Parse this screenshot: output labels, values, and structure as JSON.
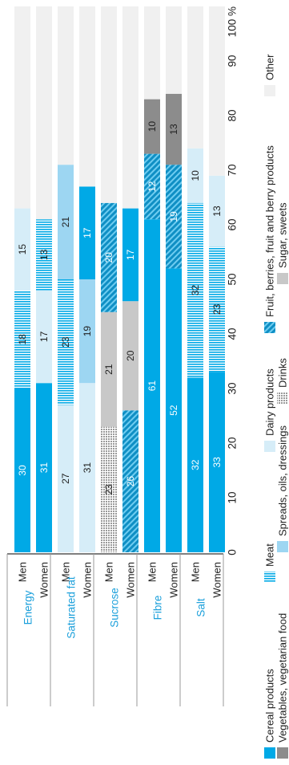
{
  "chart_data": {
    "type": "bar",
    "stacked": true,
    "orientation": "horizontal",
    "x_axis_unit": "%",
    "x_ticks": [
      "0",
      "10",
      "20",
      "30",
      "40",
      "50",
      "60",
      "70",
      "80",
      "90",
      "100 %"
    ],
    "xlim": [
      0,
      100
    ],
    "groups": [
      {
        "label": "Energy",
        "bars": [
          {
            "label": "Men",
            "segments": [
              {
                "series": "Cereal products",
                "value": 30,
                "label": "30"
              },
              {
                "series": "Meat",
                "value": 18,
                "label": "18"
              },
              {
                "series": "Dairy products",
                "value": 15,
                "label": "15"
              },
              {
                "series": "Other",
                "value": 37,
                "label": ""
              }
            ]
          },
          {
            "label": "Women",
            "segments": [
              {
                "series": "Cereal products",
                "value": 31,
                "label": "31"
              },
              {
                "series": "Dairy products",
                "value": 17,
                "label": "17"
              },
              {
                "series": "Meat",
                "value": 13,
                "label": "13"
              },
              {
                "series": "Other",
                "value": 39,
                "label": ""
              }
            ]
          }
        ]
      },
      {
        "label": "Saturated fat",
        "bars": [
          {
            "label": "Men",
            "segments": [
              {
                "series": "Dairy products",
                "value": 27,
                "label": "27"
              },
              {
                "series": "Meat",
                "value": 23,
                "label": "23"
              },
              {
                "series": "Spreads, oils, dressings",
                "value": 21,
                "label": "21"
              },
              {
                "series": "Other",
                "value": 29,
                "label": ""
              }
            ]
          },
          {
            "label": "Women",
            "segments": [
              {
                "series": "Dairy products",
                "value": 31,
                "label": "31"
              },
              {
                "series": "Spreads, oils, dressings",
                "value": 19,
                "label": "19"
              },
              {
                "series": "Cereal products",
                "value": 17,
                "label": "17"
              },
              {
                "series": "Other",
                "value": 33,
                "label": ""
              }
            ]
          }
        ]
      },
      {
        "label": "Sucrose",
        "bars": [
          {
            "label": "Men",
            "segments": [
              {
                "series": "Drinks",
                "value": 23,
                "label": "23"
              },
              {
                "series": "Sugar, sweets",
                "value": 21,
                "label": "21"
              },
              {
                "series": "Fruit, berries, fruit and berry products",
                "value": 20,
                "label": "20"
              },
              {
                "series": "Other",
                "value": 36,
                "label": ""
              }
            ]
          },
          {
            "label": "Women",
            "segments": [
              {
                "series": "Fruit, berries, fruit and berry products",
                "value": 26,
                "label": "26"
              },
              {
                "series": "Sugar, sweets",
                "value": 20,
                "label": "20"
              },
              {
                "series": "Cereal products",
                "value": 17,
                "label": "17"
              },
              {
                "series": "Other",
                "value": 37,
                "label": ""
              }
            ]
          }
        ]
      },
      {
        "label": "Fibre",
        "bars": [
          {
            "label": "Men",
            "segments": [
              {
                "series": "Cereal products",
                "value": 61,
                "label": "61"
              },
              {
                "series": "Fruit, berries, fruit and berry products",
                "value": 12,
                "label": "12"
              },
              {
                "series": "Vegetables, vegetarian food",
                "value": 10,
                "label": "10"
              },
              {
                "series": "Other",
                "value": 17,
                "label": ""
              }
            ]
          },
          {
            "label": "Women",
            "segments": [
              {
                "series": "Cereal products",
                "value": 52,
                "label": "52"
              },
              {
                "series": "Fruit, berries, fruit and berry products",
                "value": 19,
                "label": "19"
              },
              {
                "series": "Vegetables, vegetarian food",
                "value": 13,
                "label": "13"
              },
              {
                "series": "Other",
                "value": 16,
                "label": ""
              }
            ]
          }
        ]
      },
      {
        "label": "Salt",
        "bars": [
          {
            "label": "Men",
            "segments": [
              {
                "series": "Cereal products",
                "value": 32,
                "label": "32"
              },
              {
                "series": "Meat",
                "value": 32,
                "label": "32"
              },
              {
                "series": "Dairy products",
                "value": 10,
                "label": "10"
              },
              {
                "series": "Other",
                "value": 26,
                "label": ""
              }
            ]
          },
          {
            "label": "Women",
            "segments": [
              {
                "series": "Cereal products",
                "value": 33,
                "label": "33"
              },
              {
                "series": "Meat",
                "value": 23,
                "label": "23"
              },
              {
                "series": "Dairy products",
                "value": 13,
                "label": "13"
              },
              {
                "series": "Other",
                "value": 31,
                "label": ""
              }
            ]
          }
        ]
      }
    ],
    "legend": [
      {
        "name": "Cereal products",
        "color": "#00a9e6",
        "pattern": "solid"
      },
      {
        "name": "Meat",
        "color": "#00a9e6",
        "pattern": "stripes"
      },
      {
        "name": "Dairy products",
        "color": "#d6edf8",
        "pattern": "solid"
      },
      {
        "name": "Fruit, berries, fruit and berry products",
        "color": "#1c9ed0",
        "pattern": "diagonal"
      },
      {
        "name": "Other",
        "color": "#f0f0f0",
        "pattern": "solid"
      },
      {
        "name": "Vegetables, vegetarian food",
        "color": "#8c8c8c",
        "pattern": "solid"
      },
      {
        "name": "Spreads, oils, dressings",
        "color": "#9dd6f2",
        "pattern": "solid"
      },
      {
        "name": "Drinks",
        "color": "#a8a8a8",
        "pattern": "grid"
      },
      {
        "name": "Sugar, sweets",
        "color": "#c8c8c8",
        "pattern": "solid"
      }
    ],
    "legend_placement": "bottom",
    "colors": {
      "group_label": "#1ca0db",
      "bar_label_dark": "#222222",
      "bar_label_light": "#ffffff"
    }
  }
}
